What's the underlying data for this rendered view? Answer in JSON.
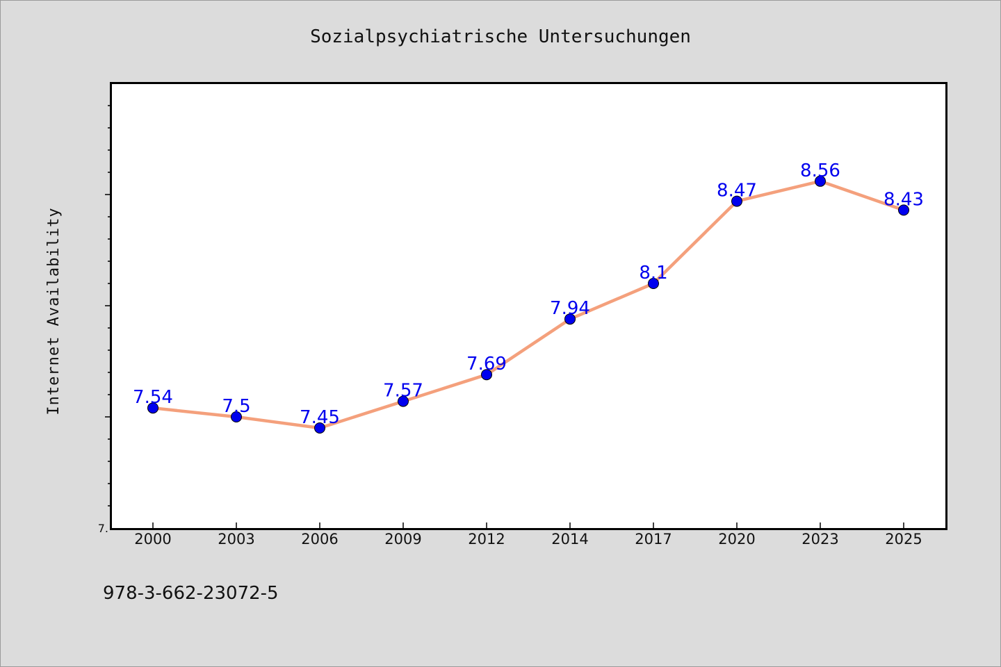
{
  "chart_data": {
    "type": "line",
    "title": "Sozialpsychiatrische Untersuchungen",
    "xlabel": "",
    "ylabel": "Internet Availability",
    "categories": [
      "2000",
      "2003",
      "2006",
      "2009",
      "2012",
      "2014",
      "2017",
      "2020",
      "2023",
      "2025"
    ],
    "series": [
      {
        "values": [
          7.54,
          7.5,
          7.45,
          7.57,
          7.69,
          7.94,
          8.1,
          8.47,
          8.56,
          8.43
        ],
        "data_labels": [
          "7.54",
          "7.5",
          "7.45",
          "7.57",
          "7.69",
          "7.94",
          "8.1",
          "8.47",
          "8.56",
          "8.43"
        ],
        "line_color": "#f4a07c",
        "marker_color": "#0000ee",
        "label_color": "#0000ee"
      }
    ],
    "ylim": [
      7.0,
      9.0
    ],
    "y_tick_labels": [
      {
        "value": 7.0,
        "label": "7."
      }
    ],
    "grid": false,
    "legend": "none"
  },
  "footer": {
    "isbn": "978-3-662-23072-5"
  },
  "colors": {
    "figure_background": "#dcdcdc",
    "plot_background": "#ffffff",
    "axes_border": "#000000"
  }
}
